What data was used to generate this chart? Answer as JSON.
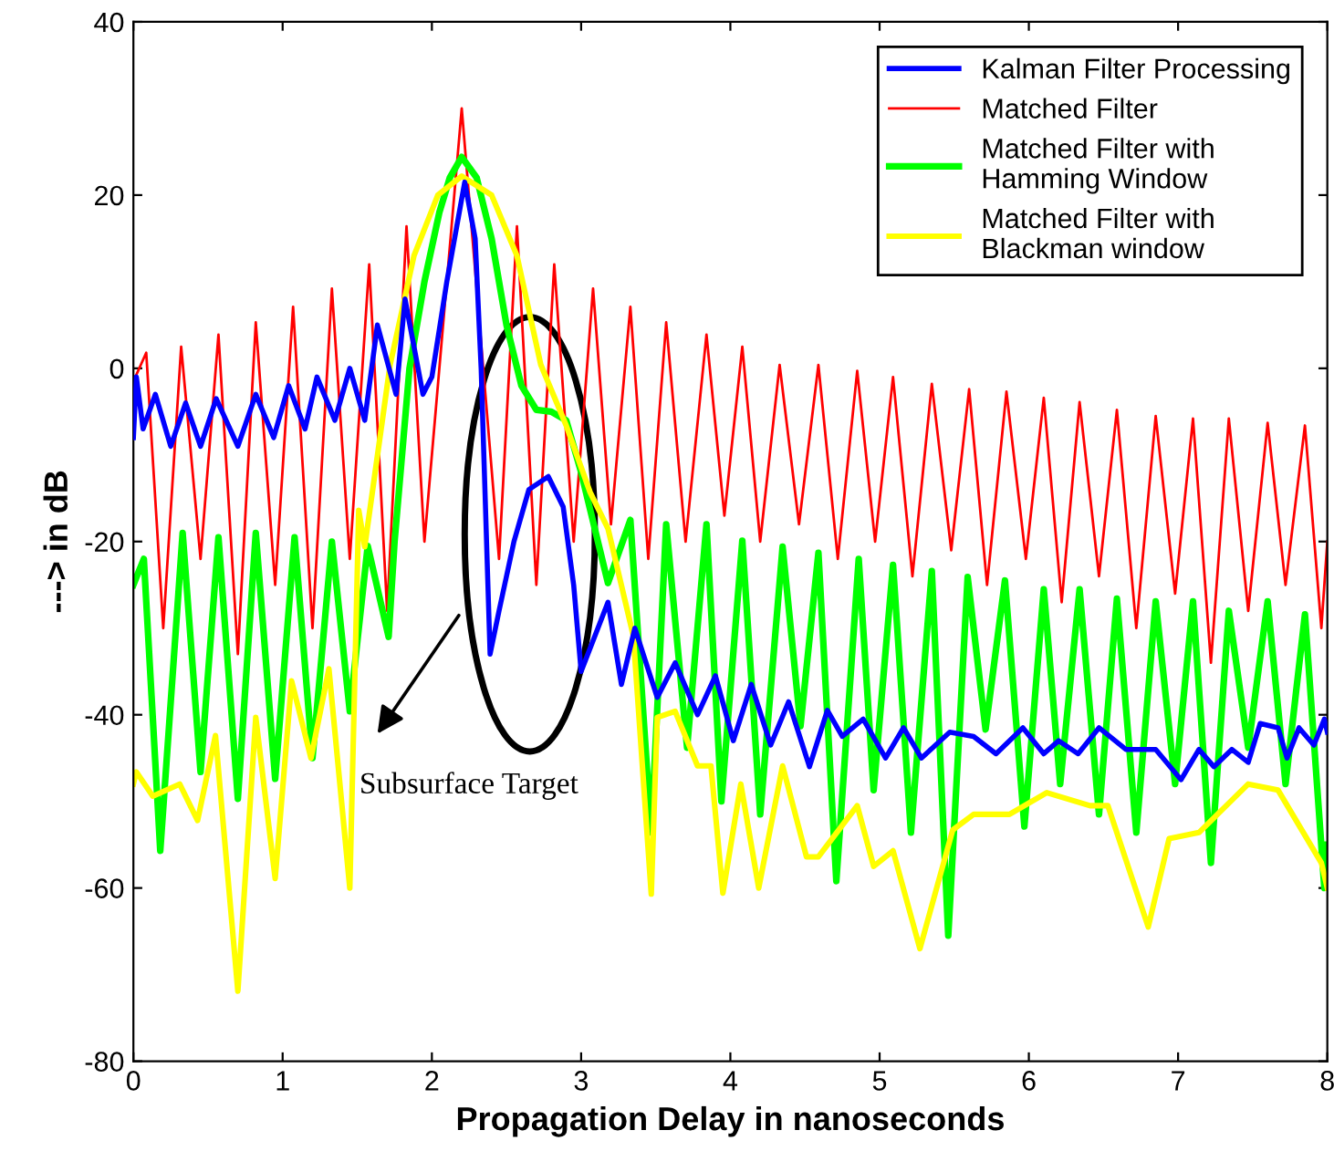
{
  "chart_data": {
    "type": "line",
    "xlabel": "Propagation Delay in nanoseconds",
    "ylabel": "---> in dB",
    "xlim": [
      0,
      8
    ],
    "ylim": [
      -80,
      40
    ],
    "xticks": [
      0,
      1,
      2,
      3,
      4,
      5,
      6,
      7,
      8
    ],
    "yticks": [
      -80,
      -60,
      -40,
      -20,
      0,
      20,
      40
    ],
    "grid": false,
    "legend": "top right",
    "marker": "none",
    "line_style": "solid",
    "series": [
      {
        "name": "Kalman Filter Processing",
        "color": "#0000ff",
        "x": [
          0,
          0.02,
          0.065,
          0.147,
          0.25,
          0.35,
          0.45,
          0.555,
          0.7,
          0.82,
          0.94,
          1.04,
          1.15,
          1.23,
          1.35,
          1.45,
          1.55,
          1.635,
          1.76,
          1.82,
          1.94,
          2.0,
          2.1,
          2.22,
          2.29,
          2.33,
          2.39,
          2.45,
          2.55,
          2.65,
          2.78,
          2.88,
          2.95,
          3.0,
          3.18,
          3.27,
          3.36,
          3.51,
          3.63,
          3.78,
          3.9,
          4.02,
          4.14,
          4.27,
          4.39,
          4.53,
          4.65,
          4.75,
          4.89,
          5.04,
          5.16,
          5.28,
          5.47,
          5.63,
          5.78,
          5.96,
          6.1,
          6.2,
          6.33,
          6.47,
          6.65,
          6.85,
          7.02,
          7.14,
          7.24,
          7.36,
          7.47,
          7.55,
          7.67,
          7.73,
          7.81,
          7.91,
          7.98,
          8
        ],
        "values": [
          -8,
          -1,
          -7,
          -3,
          -9,
          -4,
          -9,
          -3.5,
          -9,
          -3,
          -8,
          -2,
          -7,
          -1,
          -6,
          0,
          -6,
          5,
          -3,
          8,
          -3,
          -1,
          10,
          21.5,
          15,
          0,
          -33,
          -28,
          -20,
          -14,
          -12.5,
          -16,
          -25,
          -35,
          -27,
          -36.5,
          -30,
          -38,
          -34,
          -40,
          -35.5,
          -43,
          -36.5,
          -43.5,
          -38.5,
          -46,
          -39.5,
          -42.5,
          -40.5,
          -45,
          -41.5,
          -45,
          -42,
          -42.5,
          -44.5,
          -41.5,
          -44.5,
          -43,
          -44.5,
          -41.5,
          -44,
          -44,
          -47.5,
          -44,
          -46,
          -44,
          -45.5,
          -41,
          -41.5,
          -45,
          -41.5,
          -43.5,
          -40.5,
          -42
        ]
      },
      {
        "name": "Matched Filter",
        "color": "#ff0000",
        "x": [
          0,
          0.086,
          0.2,
          0.32,
          0.45,
          0.57,
          0.7,
          0.82,
          0.95,
          1.07,
          1.2,
          1.33,
          1.45,
          1.58,
          1.7,
          1.83,
          1.95,
          2.2,
          2.45,
          2.57,
          2.7,
          2.82,
          2.95,
          3.08,
          3.2,
          3.33,
          3.45,
          3.57,
          3.7,
          3.84,
          3.96,
          4.08,
          4.2,
          4.33,
          4.46,
          4.59,
          4.72,
          4.85,
          4.97,
          5.09,
          5.22,
          5.35,
          5.48,
          5.6,
          5.72,
          5.85,
          5.98,
          6.1,
          6.22,
          6.34,
          6.47,
          6.59,
          6.72,
          6.85,
          6.98,
          7.1,
          7.22,
          7.34,
          7.47,
          7.6,
          7.72,
          7.85,
          7.96,
          8
        ],
        "values": [
          -1.5,
          1.8,
          -30,
          2.5,
          -22,
          3.9,
          -33,
          5.3,
          -25,
          7.1,
          -30,
          9.2,
          -22,
          12,
          -28,
          16.4,
          -20,
          30,
          -22,
          16.4,
          -25,
          12,
          -20,
          9.2,
          -18,
          7.1,
          -22,
          5.3,
          -20,
          3.9,
          -17,
          2.5,
          -20,
          0.4,
          -18,
          0.4,
          -22,
          -0.3,
          -20,
          -1,
          -24,
          -1.8,
          -21,
          -2.4,
          -25,
          -2.7,
          -22,
          -3.4,
          -27,
          -3.9,
          -24,
          -4.8,
          -30,
          -5.5,
          -26,
          -5.8,
          -34,
          -5.8,
          -28,
          -6.3,
          -25,
          -6.6,
          -30,
          -20
        ]
      },
      {
        "name": "Matched Filter with\nHamming Window",
        "color": "#00ff00",
        "x": [
          0,
          0.07,
          0.18,
          0.33,
          0.45,
          0.57,
          0.7,
          0.82,
          0.95,
          1.08,
          1.2,
          1.33,
          1.45,
          1.57,
          1.71,
          1.75,
          1.85,
          1.95,
          2.05,
          2.12,
          2.2,
          2.3,
          2.4,
          2.5,
          2.6,
          2.7,
          2.8,
          2.9,
          3.0,
          3.18,
          3.33,
          3.47,
          3.57,
          3.71,
          3.84,
          3.94,
          4.08,
          4.2,
          4.35,
          4.47,
          4.59,
          4.71,
          4.86,
          4.96,
          5.09,
          5.21,
          5.35,
          5.46,
          5.59,
          5.71,
          5.84,
          5.97,
          6.1,
          6.21,
          6.34,
          6.47,
          6.59,
          6.72,
          6.85,
          6.98,
          7.1,
          7.22,
          7.34,
          7.47,
          7.6,
          7.72,
          7.85,
          7.98,
          8
        ],
        "values": [
          -25,
          -22,
          -55.7,
          -19,
          -46.6,
          -19.5,
          -49.7,
          -19,
          -47.4,
          -19.5,
          -45,
          -20,
          -39.6,
          -20.5,
          -31,
          -20,
          0,
          10,
          18,
          22,
          24.4,
          22,
          15,
          5,
          -2,
          -4.8,
          -5,
          -6,
          -12,
          -24.8,
          -17.5,
          -53.6,
          -18,
          -43.8,
          -18,
          -50,
          -19.9,
          -51.5,
          -20.6,
          -41.3,
          -21.3,
          -59.2,
          -22,
          -48.7,
          -22.7,
          -53.6,
          -23.4,
          -65.5,
          -24.1,
          -41.7,
          -24.5,
          -52.9,
          -25.5,
          -48,
          -25.5,
          -51.5,
          -26.6,
          -53.6,
          -26.9,
          -48,
          -26.9,
          -57.1,
          -28,
          -43.8,
          -26.9,
          -48,
          -28.4,
          -60,
          -55
        ]
      },
      {
        "name": "Matched Filter with\nBlackman window",
        "color": "#ffff00",
        "x": [
          0,
          0.02,
          0.13,
          0.31,
          0.43,
          0.55,
          0.7,
          0.82,
          0.95,
          1.06,
          1.19,
          1.31,
          1.45,
          1.51,
          1.55,
          1.72,
          1.88,
          2.04,
          2.2,
          2.4,
          2.57,
          2.73,
          2.9,
          3.06,
          3.18,
          3.35,
          3.47,
          3.51,
          3.63,
          3.78,
          3.87,
          3.95,
          4.07,
          4.19,
          4.35,
          4.51,
          4.59,
          4.85,
          4.96,
          5.09,
          5.27,
          5.49,
          5.63,
          5.87,
          6.12,
          6.41,
          6.53,
          6.8,
          6.94,
          7.14,
          7.47,
          7.67,
          7.96,
          8
        ],
        "values": [
          -48,
          -46.6,
          -49.4,
          -48,
          -52.2,
          -42.4,
          -71.9,
          -40.3,
          -58.9,
          -36.1,
          -45,
          -34.7,
          -60,
          -16.4,
          -20.6,
          0.4,
          13,
          20,
          22.2,
          20,
          13,
          0.4,
          -6.6,
          -14.3,
          -18.5,
          -30.9,
          -60.7,
          -40.3,
          -39.6,
          -45.9,
          -45.9,
          -60.6,
          -48,
          -60,
          -45.9,
          -56.4,
          -56.4,
          -50.5,
          -57.5,
          -55.7,
          -67,
          -53.3,
          -51.5,
          -51.5,
          -49,
          -50.5,
          -50.5,
          -64.5,
          -54.3,
          -53.6,
          -48,
          -48.7,
          -57.1,
          -60
        ]
      }
    ],
    "annotations": [
      "Subsurface Target"
    ]
  }
}
